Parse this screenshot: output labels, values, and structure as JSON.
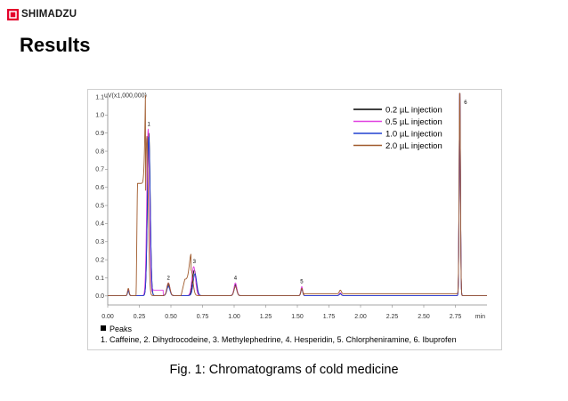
{
  "header": {
    "brand": "SHIMADZU",
    "title": "Results"
  },
  "colors": {
    "brand_accent": "#e4002b",
    "series": [
      "#000000",
      "#e040e0",
      "#2040d0",
      "#a05a2c"
    ]
  },
  "caption": "Fig. 1: Chromatograms of cold medicine",
  "peaks_legend": {
    "heading": "Peaks",
    "text": "1. Caffeine, 2. Dihydrocodeine, 3. Methylephedrine, 4. Hesperidin, 5. Chlorpheniramine, 6. Ibuprofen"
  },
  "chart_data": {
    "type": "line",
    "ylabel": "uV(x1,000,000)",
    "xunit": "min",
    "xlim": [
      0,
      3.0
    ],
    "ylim": [
      -0.05,
      1.1
    ],
    "x_ticks": [
      "0.00",
      "0.25",
      "0.50",
      "0.75",
      "1.00",
      "1.25",
      "1.50",
      "1.75",
      "2.00",
      "2.25",
      "2.50",
      "2.75"
    ],
    "y_ticks": [
      "0.0",
      "0.1",
      "0.2",
      "0.3",
      "0.4",
      "0.5",
      "0.6",
      "0.7",
      "0.8",
      "0.9",
      "1.0",
      "1.1"
    ],
    "legend_position": "top-right",
    "series": [
      {
        "name": "0.2 µL injection",
        "color": "#000000",
        "peaks": [
          {
            "x": 0.163,
            "y": 0.03
          },
          {
            "x": 0.325,
            "y": 0.9
          },
          {
            "x": 0.48,
            "y": 0.06
          },
          {
            "x": 0.685,
            "y": 0.14
          },
          {
            "x": 1.01,
            "y": 0.06
          },
          {
            "x": 1.535,
            "y": 0.04
          },
          {
            "x": 1.84,
            "y": 0.01
          },
          {
            "x": 2.785,
            "y": 1.15
          }
        ]
      },
      {
        "name": "0.5 µL injection",
        "color": "#e040e0",
        "peaks": [
          {
            "x": 0.163,
            "y": 0.035
          },
          {
            "x": 0.32,
            "y": 0.92
          },
          {
            "x": 0.48,
            "y": 0.07
          },
          {
            "x": 0.68,
            "y": 0.16
          },
          {
            "x": 1.01,
            "y": 0.07
          },
          {
            "x": 1.535,
            "y": 0.05
          },
          {
            "x": 1.84,
            "y": 0.015
          },
          {
            "x": 2.785,
            "y": 1.15
          }
        ]
      },
      {
        "name": "1.0 µL injection",
        "color": "#2040d0",
        "peaks": [
          {
            "x": 0.163,
            "y": 0.025
          },
          {
            "x": 0.325,
            "y": 0.88
          },
          {
            "x": 0.48,
            "y": 0.05
          },
          {
            "x": 0.69,
            "y": 0.12
          },
          {
            "x": 1.01,
            "y": 0.05
          },
          {
            "x": 1.535,
            "y": 0.035
          },
          {
            "x": 1.84,
            "y": 0.01
          },
          {
            "x": 2.785,
            "y": 1.15
          }
        ]
      },
      {
        "name": "2.0 µL injection",
        "color": "#a05a2c",
        "peaks": [
          {
            "x": 0.163,
            "y": 0.04
          },
          {
            "x": 0.31,
            "y": 0.88
          },
          {
            "x": 0.48,
            "y": 0.07
          },
          {
            "x": 0.66,
            "y": 0.14
          },
          {
            "x": 1.01,
            "y": 0.05
          },
          {
            "x": 1.535,
            "y": 0.04
          },
          {
            "x": 1.84,
            "y": 0.02
          },
          {
            "x": 2.785,
            "y": 1.15
          }
        ]
      }
    ],
    "peak_labels": [
      {
        "label": "1",
        "x": 0.325,
        "y": 0.93
      },
      {
        "label": "2",
        "x": 0.48,
        "y": 0.08
      },
      {
        "label": "3",
        "x": 0.685,
        "y": 0.17
      },
      {
        "label": "4",
        "x": 1.01,
        "y": 0.08
      },
      {
        "label": "5",
        "x": 1.535,
        "y": 0.06
      },
      {
        "label": "6",
        "x": 2.83,
        "y": 1.05
      }
    ]
  }
}
